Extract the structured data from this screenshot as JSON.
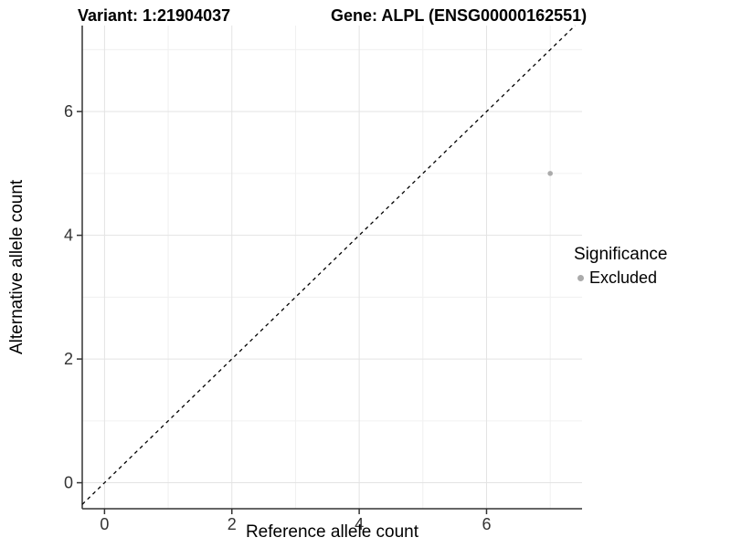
{
  "chart_data": {
    "type": "scatter",
    "titles": [
      "Variant: 1:21904037",
      "Gene: ALPL (ENSG00000162551)"
    ],
    "xlabel": "Reference allele count",
    "ylabel": "Alternative allele count",
    "x_ticks": [
      0,
      2,
      4,
      6
    ],
    "y_ticks": [
      0,
      2,
      4,
      6
    ],
    "x_minor_ticks": [
      1,
      3,
      5,
      7
    ],
    "y_minor_ticks": [
      1,
      3,
      5,
      7
    ],
    "xlim": [
      -0.35,
      7.5
    ],
    "ylim": [
      -0.42,
      7.39
    ],
    "grid": "on",
    "series": [
      {
        "name": "Excluded",
        "color": "#ababab",
        "points": [
          {
            "x": 7,
            "y": 5
          }
        ]
      }
    ],
    "reference_line": {
      "style": "dashed",
      "slope": 1,
      "intercept": 0,
      "color": "#000000"
    },
    "legend": {
      "title": "Significance",
      "position": "right",
      "entries": [
        {
          "label": "Excluded",
          "color": "#ababab"
        }
      ]
    },
    "colors": {
      "background": "#ffffff",
      "grid_major": "#e3e3e3",
      "grid_minor": "#f0f0f0",
      "axis": "#333333",
      "tick_text": "#333333"
    }
  }
}
